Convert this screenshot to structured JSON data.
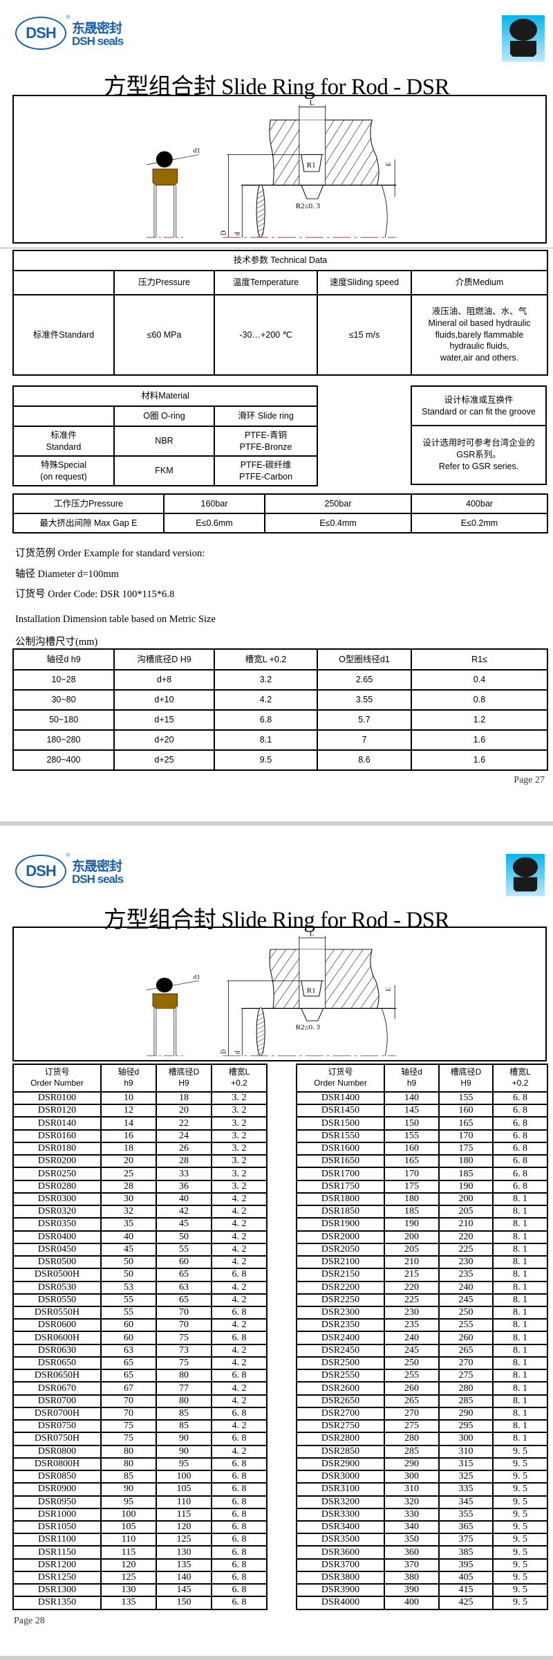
{
  "logo": {
    "mark": "DSH",
    "cn": "东晟密封",
    "en": "DSH seals",
    "reg": "®",
    "brand_color": "#1a5fa8"
  },
  "product_icon": "dsr-seal-profile-icon",
  "page1": {
    "title": "方型组合封 Slide Ring for Rod - DSR",
    "diagram_labels": {
      "L": "L",
      "d1": "d1",
      "R1": "R1",
      "R2": "R2≤0. 3",
      "E": "E",
      "D": "D",
      "d": "d"
    },
    "tech": {
      "title": "技术参数 Technical Data",
      "headers": [
        "",
        "压力Pressure",
        "温度Temperature",
        "速度Sliding speed",
        "介质Medium"
      ],
      "row": [
        "标准件Standard",
        "≤60 MPa",
        "-30…+200 ℃",
        "≤15 m/s"
      ],
      "medium": [
        "液压油、阻燃油、水、气",
        "Mineral oil based hydraulic",
        "fluids,barely flammable",
        "hydraulic fluids,",
        "water,air and others."
      ]
    },
    "material": {
      "title": "材料Material",
      "headers": [
        "",
        "O圈 O-ring",
        "滑环 Slide ring"
      ],
      "rows": [
        {
          "type": [
            "标准件",
            "Standard"
          ],
          "oring": "NBR",
          "slide": [
            "PTFE-青铜",
            "PTFE-Bronze"
          ]
        },
        {
          "type": [
            "特殊Special",
            "(on request)"
          ],
          "oring": "FKM",
          "slide": [
            "PTFE-碳纤维",
            "PTFE-Carbon"
          ]
        }
      ]
    },
    "design": {
      "title": [
        "设计标准或互换件",
        "Standard or can fit the groove"
      ],
      "body": [
        "设计选用时可参考台湾企业的",
        "GSR系列。",
        "Refer to GSR series."
      ]
    },
    "pressure": {
      "row1": [
        "工作压力Pressure",
        "160bar",
        "250bar",
        "400bar"
      ],
      "row2": [
        "最大挤出间隙 Max Gap E",
        "E≤0.6mm",
        "E≤0.4mm",
        "E≤0.2mm"
      ]
    },
    "order": {
      "line1": "订货范例  Order Example for standard version:",
      "line2": "轴径  Diameter d=100mm",
      "line3": "订货号 Order Code: DSR 100*115*6.8"
    },
    "install_title": "Installation Dimension table based on Metric Size",
    "install_subtitle": "公制沟槽尺寸(mm)",
    "install": {
      "headers": [
        "轴径d  h9",
        "沟槽底径D  H9",
        "槽宽L  +0.2",
        "O型圈线径d1",
        "R1≤"
      ],
      "rows": [
        [
          "10~28",
          "d+8",
          "3.2",
          "2.65",
          "0.4"
        ],
        [
          "30~80",
          "d+10",
          "4.2",
          "3.55",
          "0.8"
        ],
        [
          "50~180",
          "d+15",
          "6.8",
          "5.7",
          "1.2"
        ],
        [
          "180~280",
          "d+20",
          "8.1",
          "7",
          "1.6"
        ],
        [
          "280~400",
          "d+25",
          "9.5",
          "8.6",
          "1.6"
        ]
      ]
    },
    "page_label": "Page  27"
  },
  "page2": {
    "title": "方型组合封 Slide Ring for Rod - DSR",
    "headers": [
      [
        "订货号",
        "Order Number"
      ],
      [
        "轴径d",
        "h9"
      ],
      [
        "槽底径D",
        "H9"
      ],
      [
        "槽宽L",
        "+0.2"
      ]
    ],
    "left_rows": [
      [
        "DSR0100",
        "10",
        "18",
        "3. 2"
      ],
      [
        "DSR0120",
        "12",
        "20",
        "3. 2"
      ],
      [
        "DSR0140",
        "14",
        "22",
        "3. 2"
      ],
      [
        "DSR0160",
        "16",
        "24",
        "3. 2"
      ],
      [
        "DSR0180",
        "18",
        "26",
        "3. 2"
      ],
      [
        "DSR0200",
        "20",
        "28",
        "3. 2"
      ],
      [
        "DSR0250",
        "25",
        "33",
        "3. 2"
      ],
      [
        "DSR0280",
        "28",
        "36",
        "3. 2"
      ],
      [
        "DSR0300",
        "30",
        "40",
        "4. 2"
      ],
      [
        "DSR0320",
        "32",
        "42",
        "4. 2"
      ],
      [
        "DSR0350",
        "35",
        "45",
        "4. 2"
      ],
      [
        "DSR0400",
        "40",
        "50",
        "4. 2"
      ],
      [
        "DSR0450",
        "45",
        "55",
        "4. 2"
      ],
      [
        "DSR0500",
        "50",
        "60",
        "4. 2"
      ],
      [
        "DSR0500H",
        "50",
        "65",
        "6. 8"
      ],
      [
        "DSR0530",
        "53",
        "63",
        "4. 2"
      ],
      [
        "DSR0550",
        "55",
        "65",
        "4. 2"
      ],
      [
        "DSR0550H",
        "55",
        "70",
        "6. 8"
      ],
      [
        "DSR0600",
        "60",
        "70",
        "4. 2"
      ],
      [
        "DSR0600H",
        "60",
        "75",
        "6. 8"
      ],
      [
        "DSR0630",
        "63",
        "73",
        "4. 2"
      ],
      [
        "DSR0650",
        "65",
        "75",
        "4. 2"
      ],
      [
        "DSR0650H",
        "65",
        "80",
        "6. 8"
      ],
      [
        "DSR0670",
        "67",
        "77",
        "4. 2"
      ],
      [
        "DSR0700",
        "70",
        "80",
        "4. 2"
      ],
      [
        "DSR0700H",
        "70",
        "85",
        "6. 8"
      ],
      [
        "DSR0750",
        "75",
        "85",
        "4. 2"
      ],
      [
        "DSR0750H",
        "75",
        "90",
        "6. 8"
      ],
      [
        "DSR0800",
        "80",
        "90",
        "4. 2"
      ],
      [
        "DSR0800H",
        "80",
        "95",
        "6. 8"
      ],
      [
        "DSR0850",
        "85",
        "100",
        "6. 8"
      ],
      [
        "DSR0900",
        "90",
        "105",
        "6. 8"
      ],
      [
        "DSR0950",
        "95",
        "110",
        "6. 8"
      ],
      [
        "DSR1000",
        "100",
        "115",
        "6. 8"
      ],
      [
        "DSR1050",
        "105",
        "120",
        "6. 8"
      ],
      [
        "DSR1100",
        "110",
        "125",
        "6. 8"
      ],
      [
        "DSR1150",
        "115",
        "130",
        "6. 8"
      ],
      [
        "DSR1200",
        "120",
        "135",
        "6. 8"
      ],
      [
        "DSR1250",
        "125",
        "140",
        "6. 8"
      ],
      [
        "DSR1300",
        "130",
        "145",
        "6. 8"
      ],
      [
        "DSR1350",
        "135",
        "150",
        "6. 8"
      ]
    ],
    "right_rows": [
      [
        "DSR1400",
        "140",
        "155",
        "6. 8"
      ],
      [
        "DSR1450",
        "145",
        "160",
        "6. 8"
      ],
      [
        "DSR1500",
        "150",
        "165",
        "6. 8"
      ],
      [
        "DSR1550",
        "155",
        "170",
        "6. 8"
      ],
      [
        "DSR1600",
        "160",
        "175",
        "6. 8"
      ],
      [
        "DSR1650",
        "165",
        "180",
        "6. 8"
      ],
      [
        "DSR1700",
        "170",
        "185",
        "6. 8"
      ],
      [
        "DSR1750",
        "175",
        "190",
        "6. 8"
      ],
      [
        "DSR1800",
        "180",
        "200",
        "8. 1"
      ],
      [
        "DSR1850",
        "185",
        "205",
        "8. 1"
      ],
      [
        "DSR1900",
        "190",
        "210",
        "8. 1"
      ],
      [
        "DSR2000",
        "200",
        "220",
        "8. 1"
      ],
      [
        "DSR2050",
        "205",
        "225",
        "8. 1"
      ],
      [
        "DSR2100",
        "210",
        "230",
        "8. 1"
      ],
      [
        "DSR2150",
        "215",
        "235",
        "8. 1"
      ],
      [
        "DSR2200",
        "220",
        "240",
        "8. 1"
      ],
      [
        "DSR2250",
        "225",
        "245",
        "8. 1"
      ],
      [
        "DSR2300",
        "230",
        "250",
        "8. 1"
      ],
      [
        "DSR2350",
        "235",
        "255",
        "8. 1"
      ],
      [
        "DSR2400",
        "240",
        "260",
        "8. 1"
      ],
      [
        "DSR2450",
        "245",
        "265",
        "8. 1"
      ],
      [
        "DSR2500",
        "250",
        "270",
        "8. 1"
      ],
      [
        "DSR2550",
        "255",
        "275",
        "8. 1"
      ],
      [
        "DSR2600",
        "260",
        "280",
        "8. 1"
      ],
      [
        "DSR2650",
        "265",
        "285",
        "8. 1"
      ],
      [
        "DSR2700",
        "270",
        "290",
        "8. 1"
      ],
      [
        "DSR2750",
        "275",
        "295",
        "8. 1"
      ],
      [
        "DSR2800",
        "280",
        "300",
        "8. 1"
      ],
      [
        "DSR2850",
        "285",
        "310",
        "9. 5"
      ],
      [
        "DSR2900",
        "290",
        "315",
        "9. 5"
      ],
      [
        "DSR3000",
        "300",
        "325",
        "9. 5"
      ],
      [
        "DSR3100",
        "310",
        "335",
        "9. 5"
      ],
      [
        "DSR3200",
        "320",
        "345",
        "9. 5"
      ],
      [
        "DSR3300",
        "330",
        "355",
        "9. 5"
      ],
      [
        "DSR3400",
        "340",
        "365",
        "9. 5"
      ],
      [
        "DSR3500",
        "350",
        "375",
        "9. 5"
      ],
      [
        "DSR3600",
        "360",
        "385",
        "9. 5"
      ],
      [
        "DSR3700",
        "370",
        "395",
        "9. 5"
      ],
      [
        "DSR3800",
        "380",
        "405",
        "9. 5"
      ],
      [
        "DSR3900",
        "390",
        "415",
        "9. 5"
      ],
      [
        "DSR4000",
        "400",
        "425",
        "9. 5"
      ]
    ],
    "page_label": "Page  28"
  }
}
